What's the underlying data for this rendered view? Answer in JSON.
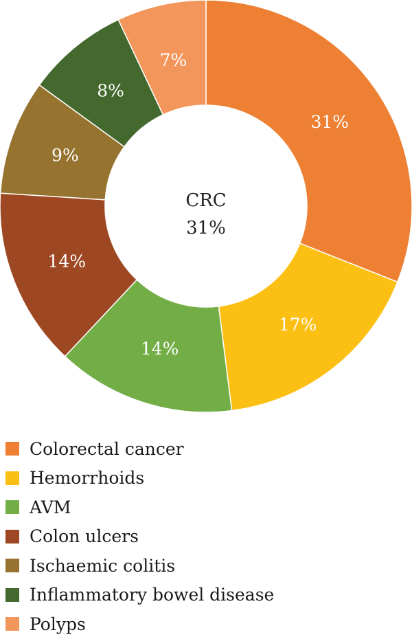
{
  "chart_data": {
    "type": "pie",
    "donut": true,
    "title": "",
    "center_label": {
      "name": "CRC",
      "value": "31%"
    },
    "start_angle_deg": 0,
    "direction": "clockwise",
    "slices": [
      {
        "label": "Colorectal cancer",
        "value": 31,
        "display": "31%",
        "color": "#EE8033"
      },
      {
        "label": "Hemorrhoids",
        "value": 17,
        "display": "17%",
        "color": "#FCBF14"
      },
      {
        "label": "AVM",
        "value": 14,
        "display": "14%",
        "color": "#72AD46"
      },
      {
        "label": "Colon ulcers",
        "value": 14,
        "display": "14%",
        "color": "#9E4823"
      },
      {
        "label": "Ischaemic colitis",
        "value": 9,
        "display": "9%",
        "color": "#967430"
      },
      {
        "label": "Inflammatory bowel disease",
        "value": 8,
        "display": "8%",
        "color": "#43692E"
      },
      {
        "label": "Polyps",
        "value": 7,
        "display": "7%",
        "color": "#F3965C"
      }
    ],
    "legend_position": "bottom-left"
  }
}
